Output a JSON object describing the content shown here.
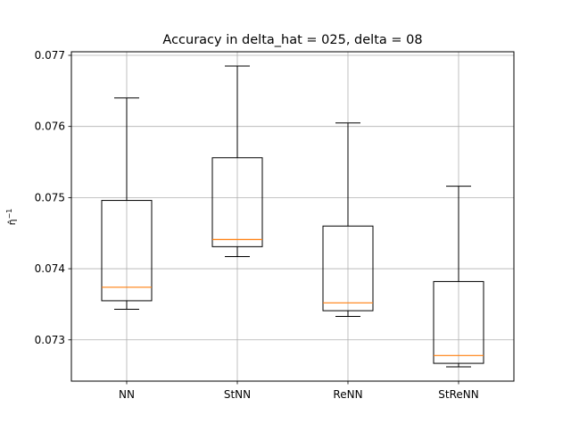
{
  "chart_data": {
    "type": "box",
    "title": "Accuracy in delta_hat = 025, delta = 08",
    "xlabel": "",
    "ylabel_base": "η̂",
    "ylabel_sup": "−1",
    "ylim": [
      0.07242,
      0.07705
    ],
    "yticks": [
      0.073,
      0.074,
      0.075,
      0.076,
      0.077
    ],
    "ytick_labels": [
      "0.073",
      "0.074",
      "0.075",
      "0.076",
      "0.077"
    ],
    "grid": true,
    "categories": [
      "NN",
      "StNN",
      "ReNN",
      "StReNN"
    ],
    "boxes": [
      {
        "label": "NN",
        "whisker_low": 0.07343,
        "q1": 0.07355,
        "median": 0.07374,
        "q3": 0.07496,
        "whisker_high": 0.0764
      },
      {
        "label": "StNN",
        "whisker_low": 0.07417,
        "q1": 0.07431,
        "median": 0.07441,
        "q3": 0.07556,
        "whisker_high": 0.07685
      },
      {
        "label": "ReNN",
        "whisker_low": 0.07333,
        "q1": 0.07341,
        "median": 0.07352,
        "q3": 0.0746,
        "whisker_high": 0.07605
      },
      {
        "label": "StReNN",
        "whisker_low": 0.07262,
        "q1": 0.07267,
        "median": 0.07278,
        "q3": 0.07382,
        "whisker_high": 0.07516
      }
    ],
    "colors": {
      "box": "#000000",
      "median": "#ff7f0e",
      "grid": "#b0b0b0"
    }
  }
}
